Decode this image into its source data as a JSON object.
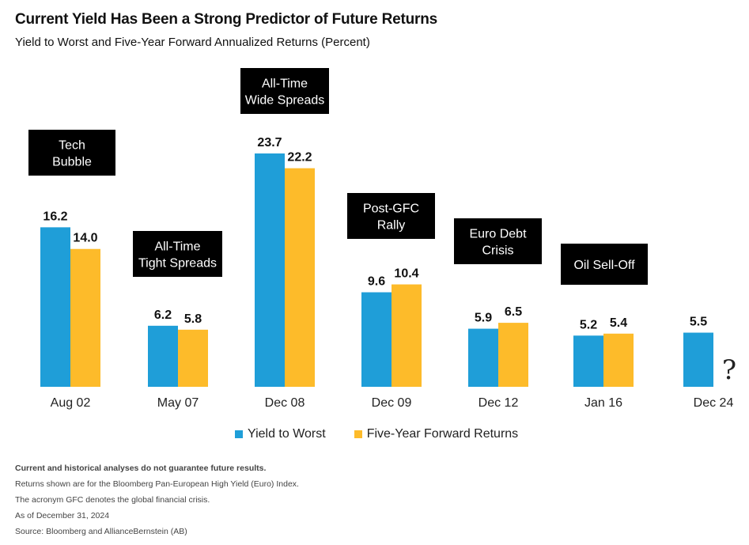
{
  "title": "Current Yield Has Been a Strong Predictor of Future Returns",
  "subtitle": "Yield to Worst and Five-Year Forward Annualized Returns (Percent)",
  "colors": {
    "yield": "#1f9ed8",
    "returns": "#fdbb2a",
    "callout_bg": "#000000"
  },
  "legend": {
    "yield_label": "Yield to Worst",
    "returns_label": "Five-Year Forward Returns"
  },
  "notes": [
    "Current and historical analyses do not guarantee future results.",
    "Returns shown are for the Bloomberg Pan-European High Yield (Euro) Index.",
    "The acronym GFC denotes the global financial crisis.",
    "As of December 31, 2024",
    "Source: Bloomberg and AllianceBernstein (AB)"
  ],
  "chart_data": {
    "type": "bar",
    "categories": [
      "Aug 02",
      "May 07",
      "Dec 08",
      "Dec 09",
      "Dec 12",
      "Jan 16",
      "Dec 24"
    ],
    "series": [
      {
        "name": "Yield to Worst",
        "values": [
          16.2,
          6.2,
          23.7,
          9.6,
          5.9,
          5.2,
          5.5
        ]
      },
      {
        "name": "Five-Year Forward Returns",
        "values": [
          14.0,
          5.8,
          22.2,
          10.4,
          6.5,
          5.4,
          null
        ]
      }
    ],
    "annotations": [
      {
        "category": "Aug 02",
        "lines": [
          "Tech",
          "Bubble"
        ]
      },
      {
        "category": "May 07",
        "lines": [
          "All-Time",
          "Tight Spreads"
        ]
      },
      {
        "category": "Dec 08",
        "lines": [
          "All-Time",
          "Wide Spreads"
        ]
      },
      {
        "category": "Dec 09",
        "lines": [
          "Post-GFC",
          "Rally"
        ]
      },
      {
        "category": "Dec 12",
        "lines": [
          "Euro Debt",
          "Crisis"
        ]
      },
      {
        "category": "Jan 16",
        "lines": [
          "Oil Sell-Off"
        ]
      }
    ],
    "missing_marker": "?",
    "ylim": [
      0,
      23.7
    ],
    "grid": false,
    "legend_position": "bottom"
  }
}
